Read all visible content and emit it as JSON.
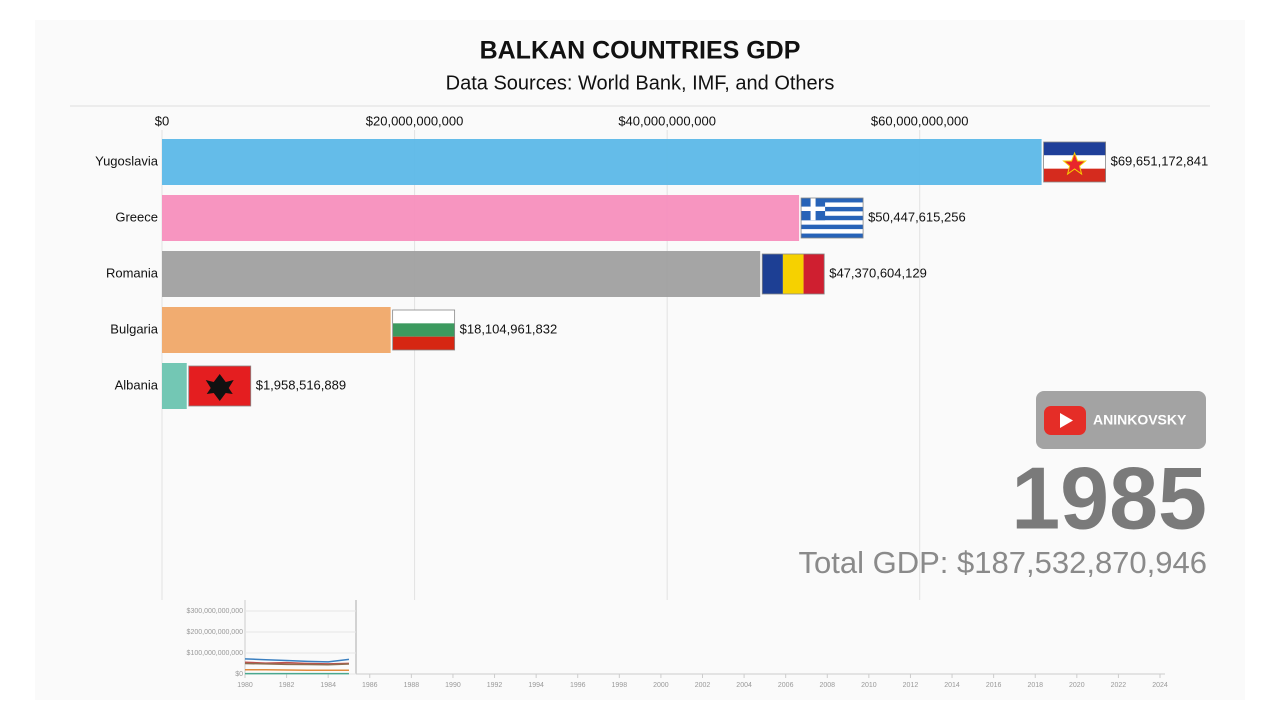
{
  "chart_data": {
    "type": "bar",
    "title": "BALKAN COUNTRIES GDP",
    "subtitle": "Data Sources: World Bank, IMF, and Others",
    "categories": [
      "Yugoslavia",
      "Greece",
      "Romania",
      "Bulgaria",
      "Albania"
    ],
    "values": [
      69651172841,
      50447615256,
      47370604129,
      18104961832,
      1958516889
    ],
    "value_labels": [
      "$69,651,172,841",
      "$50,447,615,256",
      "$47,370,604,129",
      "$18,104,961,832",
      "$1,958,516,889"
    ],
    "colors": [
      "#5cb8e8",
      "#f78fbd",
      "#a0a0a0",
      "#f0a868",
      "#6cc4b0"
    ],
    "xlim": [
      0,
      70000000000
    ],
    "xticks": [
      {
        "value": 0,
        "label": "$0"
      },
      {
        "value": 20000000000,
        "label": "$20,000,000,000"
      },
      {
        "value": 40000000000,
        "label": "$40,000,000,000"
      },
      {
        "value": 60000000000,
        "label": "$60,000,000,000"
      }
    ],
    "grid": true,
    "year": 1985,
    "total_label": "Total GDP: $187,532,870,946",
    "channel": "ANINKOVSKY",
    "history": {
      "type": "line",
      "x": [
        1980,
        1981,
        1982,
        1983,
        1984,
        1985
      ],
      "series": [
        {
          "color": "#3a7fc0",
          "values": [
            72000000000,
            68000000000,
            64000000000,
            60000000000,
            58000000000,
            69651172841
          ]
        },
        {
          "color": "#c0504d",
          "values": [
            56000000000,
            52000000000,
            54000000000,
            50000000000,
            48000000000,
            50447615256
          ]
        },
        {
          "color": "#8c6d4f",
          "values": [
            50000000000,
            48000000000,
            46000000000,
            45000000000,
            44000000000,
            47370604129
          ]
        },
        {
          "color": "#e08a3c",
          "values": [
            20000000000,
            20000000000,
            19000000000,
            18000000000,
            18000000000,
            18104961832
          ]
        },
        {
          "color": "#4aa88e",
          "values": [
            1900000000,
            2000000000,
            2000000000,
            2000000000,
            1900000000,
            1958516889
          ]
        }
      ],
      "xlim": [
        1980,
        2024
      ],
      "xticks": [
        1980,
        1982,
        1984,
        1986,
        1988,
        1990,
        1992,
        1994,
        1996,
        1998,
        2000,
        2002,
        2004,
        2006,
        2008,
        2010,
        2012,
        2014,
        2016,
        2018,
        2020,
        2022,
        2024
      ],
      "ylim": [
        0,
        300000000000
      ],
      "yticks": [
        {
          "value": 0,
          "label": "$0"
        },
        {
          "value": 100000000000,
          "label": "$100,000,000,000"
        },
        {
          "value": 200000000000,
          "label": "$200,000,000,000"
        },
        {
          "value": 300000000000,
          "label": "$300,000,000,000"
        }
      ]
    }
  }
}
